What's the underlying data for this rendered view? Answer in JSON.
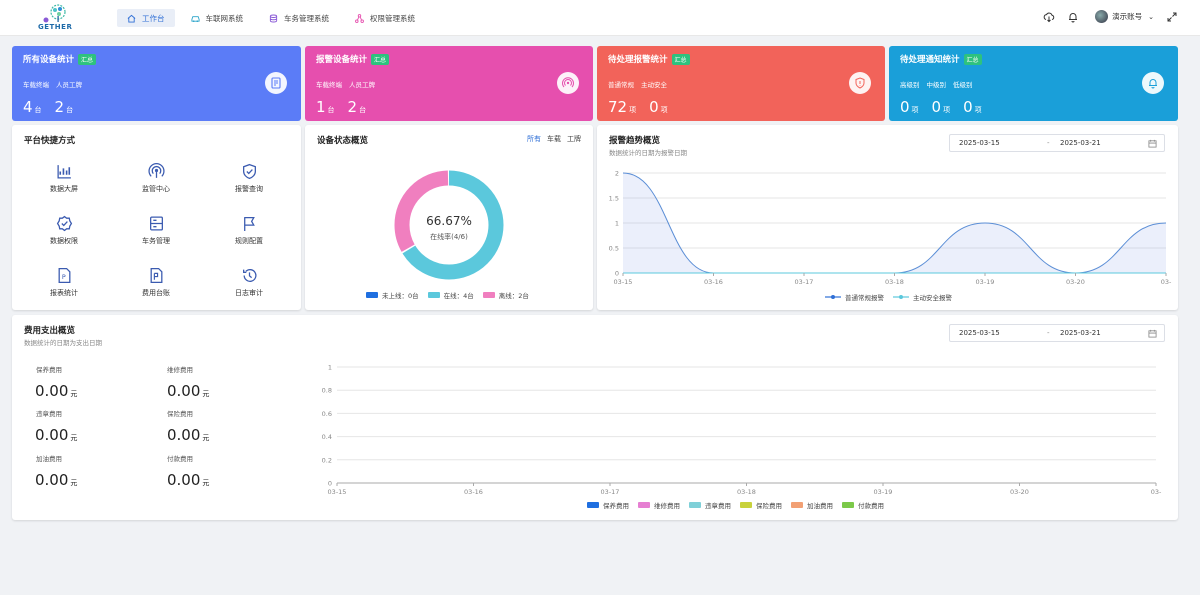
{
  "header": {
    "logo_text": "GETHER",
    "nav": [
      {
        "label": "工作台"
      },
      {
        "label": "车联网系统"
      },
      {
        "label": "车务管理系统"
      },
      {
        "label": "权限管理系统"
      }
    ],
    "user_name": "演示账号"
  },
  "stats": [
    {
      "title": "所有设备统计",
      "badge": "汇总",
      "labels": [
        "车载终端",
        "人员工牌"
      ],
      "values": [
        "4",
        "2"
      ],
      "unit": "台",
      "color": "#5b7cf7"
    },
    {
      "title": "报警设备统计",
      "badge": "汇总",
      "labels": [
        "车载终端",
        "人员工牌"
      ],
      "values": [
        "1",
        "2"
      ],
      "unit": "台",
      "color": "#e64fae"
    },
    {
      "title": "待处理报警统计",
      "badge": "汇总",
      "labels": [
        "普通常规",
        "主动安全"
      ],
      "values": [
        "72",
        "0"
      ],
      "unit": "项",
      "color": "#f2635a"
    },
    {
      "title": "待处理通知统计",
      "badge": "汇总",
      "labels": [
        "高级别",
        "中级别",
        "低级别"
      ],
      "values": [
        "0",
        "0",
        "0"
      ],
      "unit": "项",
      "color": "#1a9fd9"
    }
  ],
  "shortcuts": {
    "title": "平台快捷方式",
    "items": [
      "数据大屏",
      "监管中心",
      "报警查询",
      "数据权限",
      "车务管理",
      "规则配置",
      "报表统计",
      "费用台账",
      "日志审计"
    ]
  },
  "device_status": {
    "title": "设备状态概览",
    "tabs": [
      "所有",
      "车载",
      "工牌"
    ],
    "percent": "66.67%",
    "caption": "在线率(4/6)",
    "legend": [
      "未上线：0台",
      "在线：4台",
      "离线：2台"
    ],
    "colors": {
      "offline_never": "#1f6fe0",
      "online": "#5bc8dc",
      "offline": "#f07fbf"
    },
    "chart_data": {
      "type": "pie",
      "categories": [
        "未上线",
        "在线",
        "离线"
      ],
      "values": [
        0,
        4,
        2
      ]
    }
  },
  "alarm_trend": {
    "title": "报警趋势概览",
    "subtitle": "数据统计的日期为报警日期",
    "date_from": "2025-03-15",
    "date_sep": "-",
    "date_to": "2025-03-21",
    "legend": [
      "普通常规报警",
      "主动安全报警"
    ],
    "chart_data": {
      "type": "line",
      "x": [
        "03-15",
        "03-16",
        "03-17",
        "03-18",
        "03-19",
        "03-20",
        "03-21"
      ],
      "x_tick_labels": [
        "03-15",
        "03-16",
        "03-17",
        "03-18",
        "03-19",
        "03-20",
        "03-"
      ],
      "series": [
        {
          "name": "普通常规报警",
          "values": [
            2,
            0,
            0,
            0,
            1,
            0,
            1
          ]
        },
        {
          "name": "主动安全报警",
          "values": [
            0,
            0,
            0,
            0,
            0,
            0,
            0
          ]
        }
      ],
      "yticks": [
        "0",
        "0.5",
        "1",
        "1.5",
        "2"
      ],
      "ylim": [
        0,
        2
      ]
    }
  },
  "expense": {
    "title": "费用支出概览",
    "subtitle": "数据统计的日期为支出日期",
    "date_from": "2025-03-15",
    "date_sep": "-",
    "date_to": "2025-03-21",
    "items": [
      {
        "label": "保养费用",
        "value": "0.00",
        "unit": "元"
      },
      {
        "label": "维修费用",
        "value": "0.00",
        "unit": "元"
      },
      {
        "label": "违章费用",
        "value": "0.00",
        "unit": "元"
      },
      {
        "label": "保险费用",
        "value": "0.00",
        "unit": "元"
      },
      {
        "label": "加油费用",
        "value": "0.00",
        "unit": "元"
      },
      {
        "label": "付款费用",
        "value": "0.00",
        "unit": "元"
      }
    ],
    "legend": [
      {
        "label": "保养费用",
        "color": "#1f6fe0"
      },
      {
        "label": "维修费用",
        "color": "#e67fd2"
      },
      {
        "label": "违章费用",
        "color": "#7fd0d8"
      },
      {
        "label": "保险费用",
        "color": "#c8d23c"
      },
      {
        "label": "加油费用",
        "color": "#f2a074"
      },
      {
        "label": "付款费用",
        "color": "#7cc94a"
      }
    ],
    "chart_data": {
      "type": "bar",
      "categories": [
        "03-15",
        "03-16",
        "03-17",
        "03-18",
        "03-19",
        "03-20",
        "03-21"
      ],
      "x_tick_labels": [
        "03-15",
        "03-16",
        "03-17",
        "03-18",
        "03-19",
        "03-20",
        "03-"
      ],
      "series": [
        {
          "name": "保养费用",
          "values": [
            0,
            0,
            0,
            0,
            0,
            0,
            0
          ]
        },
        {
          "name": "维修费用",
          "values": [
            0,
            0,
            0,
            0,
            0,
            0,
            0
          ]
        },
        {
          "name": "违章费用",
          "values": [
            0,
            0,
            0,
            0,
            0,
            0,
            0
          ]
        },
        {
          "name": "保险费用",
          "values": [
            0,
            0,
            0,
            0,
            0,
            0,
            0
          ]
        },
        {
          "name": "加油费用",
          "values": [
            0,
            0,
            0,
            0,
            0,
            0,
            0
          ]
        },
        {
          "name": "付款费用",
          "values": [
            0,
            0,
            0,
            0,
            0,
            0,
            0
          ]
        }
      ],
      "yticks": [
        "0",
        "0.2",
        "0.4",
        "0.6",
        "0.8",
        "1"
      ],
      "ylim": [
        0,
        1
      ]
    }
  }
}
